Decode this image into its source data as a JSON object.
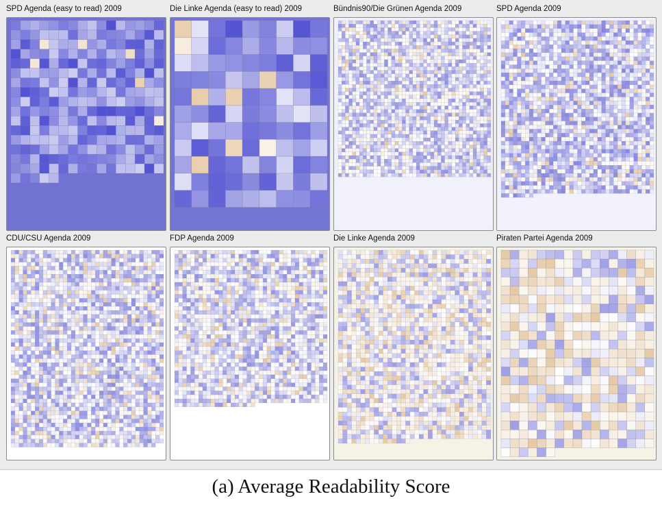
{
  "caption": "(a)  Average Readability Score",
  "colors": {
    "low_readability": "#2b2bc8",
    "mid_readability": "#ffffff",
    "high_readability": "#c88a3c",
    "figure_background": "#ececec",
    "panel_border": "#8a8a8a"
  },
  "chart_data": [
    {
      "type": "heatmap",
      "title": "SPD Agenda (easy to read) 2009",
      "panel_background": "#7272d2",
      "cols": 16,
      "cell_count": 261,
      "mean_score": -0.62,
      "spread": 0.35,
      "warm_share": 0.04
    },
    {
      "type": "heatmap",
      "title": "Die Linke Agenda (easy to read) 2009",
      "panel_background": "#7474d4",
      "cols": 9,
      "cell_count": 99,
      "mean_score": -0.55,
      "spread": 0.4,
      "warm_share": 0.06
    },
    {
      "type": "heatmap",
      "title": "Bündnis90/Die Grünen Agenda 2009",
      "panel_background": "#f1f1fb",
      "cols": 43,
      "cell_count": 1892,
      "mean_score": -0.22,
      "spread": 0.38,
      "warm_share": 0.1
    },
    {
      "type": "heatmap",
      "title": "SPD Agenda 2009",
      "panel_background": "#f2f2fc",
      "cols": 38,
      "cell_count": 1642,
      "mean_score": -0.28,
      "spread": 0.38,
      "warm_share": 0.12
    },
    {
      "type": "heatmap",
      "title": "CDU/CSU Agenda 2009",
      "panel_background": "#ffffff",
      "cols": 38,
      "cell_count": 1860,
      "mean_score": -0.24,
      "spread": 0.38,
      "warm_share": 0.15
    },
    {
      "type": "heatmap",
      "title": "FDP Agenda 2009",
      "panel_background": "#ffffff",
      "cols": 38,
      "cell_count": 1464,
      "mean_score": -0.22,
      "spread": 0.38,
      "warm_share": 0.16
    },
    {
      "type": "heatmap",
      "title": "Die Linke Agenda 2009",
      "panel_background": "#f5f3e6",
      "cols": 34,
      "cell_count": 1444,
      "mean_score": -0.12,
      "spread": 0.42,
      "warm_share": 0.3
    },
    {
      "type": "heatmap",
      "title": "Piraten Partei Agenda 2009",
      "panel_background": "#f5f3e6",
      "cols": 17,
      "cell_count": 380,
      "mean_score": -0.08,
      "spread": 0.45,
      "warm_share": 0.38
    }
  ]
}
